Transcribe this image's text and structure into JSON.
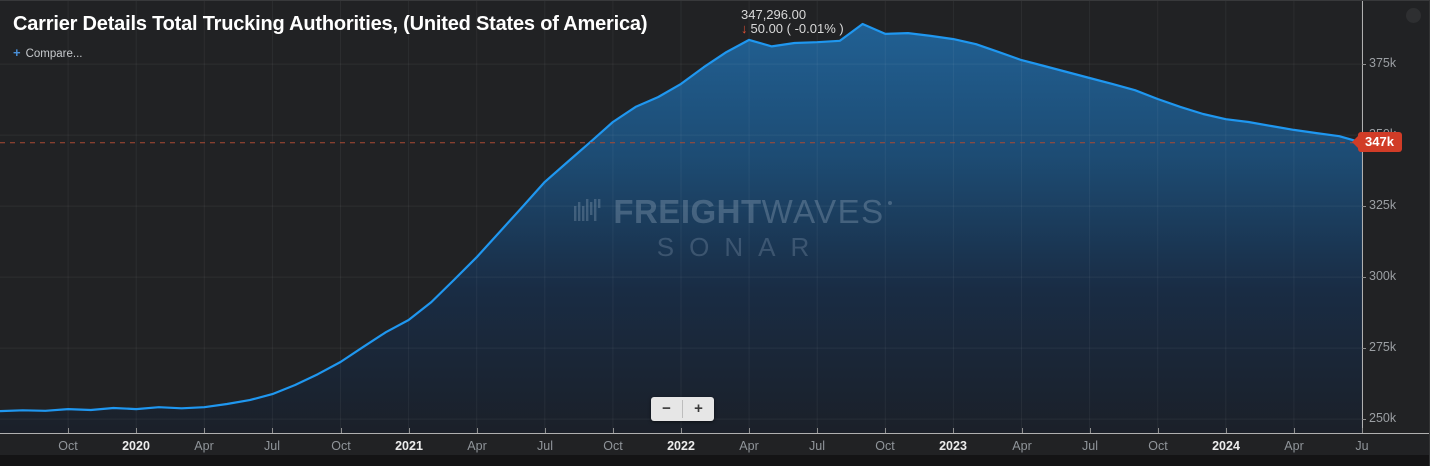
{
  "header": {
    "title": "Carrier Details Total Trucking Authorities, (United States of America)",
    "stat": {
      "value": "347,296.00",
      "arrow": "↓",
      "change": "50.00 ( -0.01% )"
    },
    "compare": {
      "plus_icon": "+",
      "label": "Compare..."
    }
  },
  "watermark": {
    "brand_bold": "FREIGHT",
    "brand_light": "WAVES",
    "sub": "SONAR"
  },
  "zoom_controls": {
    "minus_label": "−",
    "plus_label": "+"
  },
  "current_marker": {
    "label": "347k",
    "value": 347296,
    "badge_color": "#d13c27",
    "line_color": "#aa4a33"
  },
  "colors": {
    "background": "#212224",
    "line": "#1f97f0",
    "axis": "#c9c9c9",
    "badge": "#d13c27"
  },
  "chart_data": {
    "type": "area",
    "title": "Carrier Details Total Trucking Authorities, (United States of America)",
    "xlabel": "",
    "ylabel": "",
    "ylim": [
      245100,
      397200
    ],
    "grid": true,
    "legend_position": "none",
    "line_color": "#1f97f0",
    "fill_gradient": [
      {
        "offset": 0,
        "color": "#216093"
      },
      {
        "offset": 0.32,
        "color": "#1d4c74"
      },
      {
        "offset": 0.65,
        "color": "#192c44"
      },
      {
        "offset": 1,
        "color": "#1b2029"
      }
    ],
    "y_ticks": [
      {
        "value": 250000,
        "label": "250k"
      },
      {
        "value": 275000,
        "label": "275k"
      },
      {
        "value": 300000,
        "label": "300k"
      },
      {
        "value": 325000,
        "label": "325k"
      },
      {
        "value": 350000,
        "label": "350k"
      },
      {
        "value": 375000,
        "label": "375k"
      }
    ],
    "x_ticks": [
      {
        "month_offset": 3,
        "label": "Oct",
        "year": false
      },
      {
        "month_offset": 6,
        "label": "2020",
        "year": true
      },
      {
        "month_offset": 9,
        "label": "Apr",
        "year": false
      },
      {
        "month_offset": 12,
        "label": "Jul",
        "year": false
      },
      {
        "month_offset": 15,
        "label": "Oct",
        "year": false
      },
      {
        "month_offset": 18,
        "label": "2021",
        "year": true
      },
      {
        "month_offset": 21,
        "label": "Apr",
        "year": false
      },
      {
        "month_offset": 24,
        "label": "Jul",
        "year": false
      },
      {
        "month_offset": 27,
        "label": "Oct",
        "year": false
      },
      {
        "month_offset": 30,
        "label": "2022",
        "year": true
      },
      {
        "month_offset": 33,
        "label": "Apr",
        "year": false
      },
      {
        "month_offset": 36,
        "label": "Jul",
        "year": false
      },
      {
        "month_offset": 39,
        "label": "Oct",
        "year": false
      },
      {
        "month_offset": 42,
        "label": "2023",
        "year": true
      },
      {
        "month_offset": 45,
        "label": "Apr",
        "year": false
      },
      {
        "month_offset": 48,
        "label": "Jul",
        "year": false
      },
      {
        "month_offset": 51,
        "label": "Oct",
        "year": false
      },
      {
        "month_offset": 54,
        "label": "2024",
        "year": true
      },
      {
        "month_offset": 57,
        "label": "Apr",
        "year": false
      },
      {
        "month_offset": 60,
        "label": "Ju",
        "year": false
      }
    ],
    "series": [
      {
        "name": "Total Trucking Authorities (USA)",
        "points": [
          [
            "2019-07",
            252800
          ],
          [
            "2019-08",
            253100
          ],
          [
            "2019-09",
            252900
          ],
          [
            "2019-10",
            253500
          ],
          [
            "2019-11",
            253200
          ],
          [
            "2019-12",
            253900
          ],
          [
            "2020-01",
            253500
          ],
          [
            "2020-02",
            254200
          ],
          [
            "2020-03",
            253800
          ],
          [
            "2020-04",
            254200
          ],
          [
            "2020-05",
            255300
          ],
          [
            "2020-06",
            256700
          ],
          [
            "2020-07",
            258800
          ],
          [
            "2020-08",
            262000
          ],
          [
            "2020-09",
            265800
          ],
          [
            "2020-10",
            270100
          ],
          [
            "2020-11",
            275400
          ],
          [
            "2020-12",
            280600
          ],
          [
            "2021-01",
            284900
          ],
          [
            "2021-02",
            291200
          ],
          [
            "2021-03",
            299000
          ],
          [
            "2021-04",
            307000
          ],
          [
            "2021-05",
            315800
          ],
          [
            "2021-06",
            324600
          ],
          [
            "2021-07",
            333500
          ],
          [
            "2021-08",
            340500
          ],
          [
            "2021-09",
            347500
          ],
          [
            "2021-10",
            354600
          ],
          [
            "2021-11",
            359900
          ],
          [
            "2021-12",
            363400
          ],
          [
            "2022-01",
            368000
          ],
          [
            "2022-02",
            373900
          ],
          [
            "2022-03",
            379200
          ],
          [
            "2022-04",
            383500
          ],
          [
            "2022-05",
            381200
          ],
          [
            "2022-06",
            382400
          ],
          [
            "2022-07",
            382700
          ],
          [
            "2022-08",
            383200
          ],
          [
            "2022-09",
            389100
          ],
          [
            "2022-10",
            385600
          ],
          [
            "2022-11",
            385900
          ],
          [
            "2022-12",
            384900
          ],
          [
            "2023-01",
            383800
          ],
          [
            "2023-02",
            382000
          ],
          [
            "2023-03",
            379200
          ],
          [
            "2023-04",
            376400
          ],
          [
            "2023-05",
            374300
          ],
          [
            "2023-06",
            372200
          ],
          [
            "2023-07",
            370100
          ],
          [
            "2023-08",
            368000
          ],
          [
            "2023-09",
            365800
          ],
          [
            "2023-10",
            362700
          ],
          [
            "2023-11",
            359900
          ],
          [
            "2023-12",
            357400
          ],
          [
            "2024-01",
            355600
          ],
          [
            "2024-02",
            354600
          ],
          [
            "2024-03",
            353200
          ],
          [
            "2024-04",
            351800
          ],
          [
            "2024-05",
            350700
          ],
          [
            "2024-06",
            349600
          ],
          [
            "2024-07",
            347296
          ]
        ]
      }
    ]
  }
}
